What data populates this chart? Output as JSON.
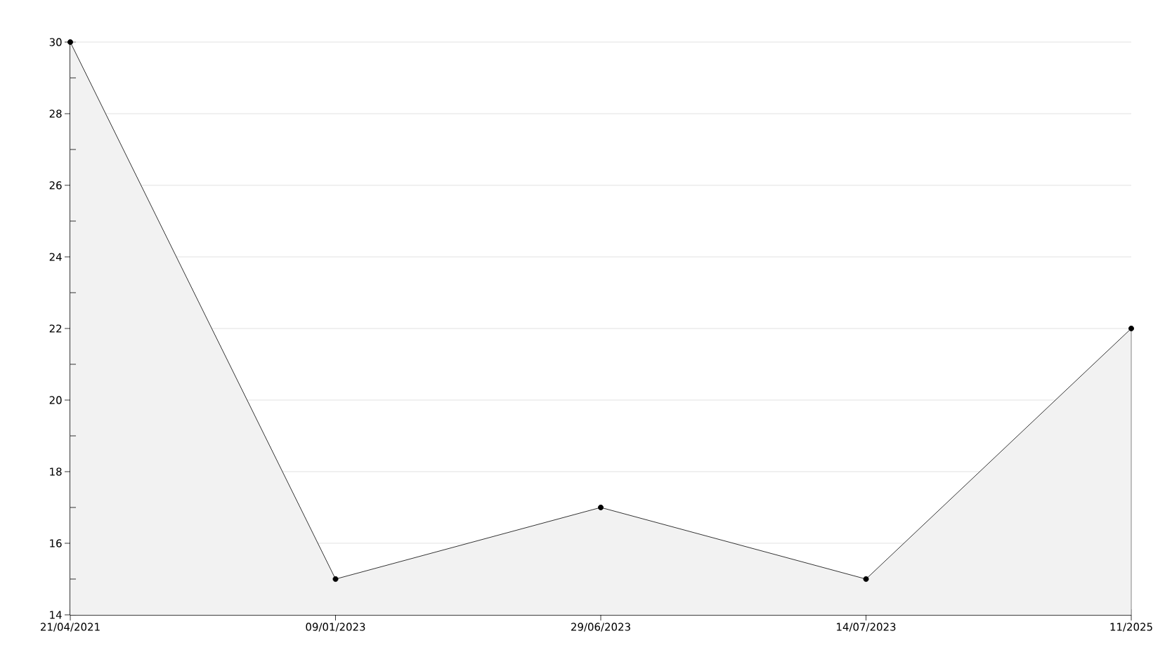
{
  "chart_data": {
    "type": "area",
    "categories": [
      "21/04/2021",
      "09/01/2023",
      "29/06/2023",
      "14/07/2023",
      "11/2025"
    ],
    "series": [
      {
        "color": "#000000",
        "values": [
          30,
          15,
          17,
          15,
          22
        ]
      }
    ],
    "ylim": [
      14,
      30
    ],
    "yticks": [
      14,
      {
        "value": 15,
        "label": null
      },
      16,
      {
        "value": 17,
        "label": null
      },
      18,
      {
        "value": 19,
        "label": null
      },
      20,
      {
        "value": 21,
        "label": null
      },
      22,
      {
        "value": 23,
        "label": null
      },
      24,
      {
        "value": 25,
        "label": null
      },
      26,
      {
        "value": 27,
        "label": null
      },
      28,
      {
        "value": 29,
        "label": null
      },
      30
    ],
    "grid": "y",
    "marker": "circle",
    "line_style": "solid"
  }
}
